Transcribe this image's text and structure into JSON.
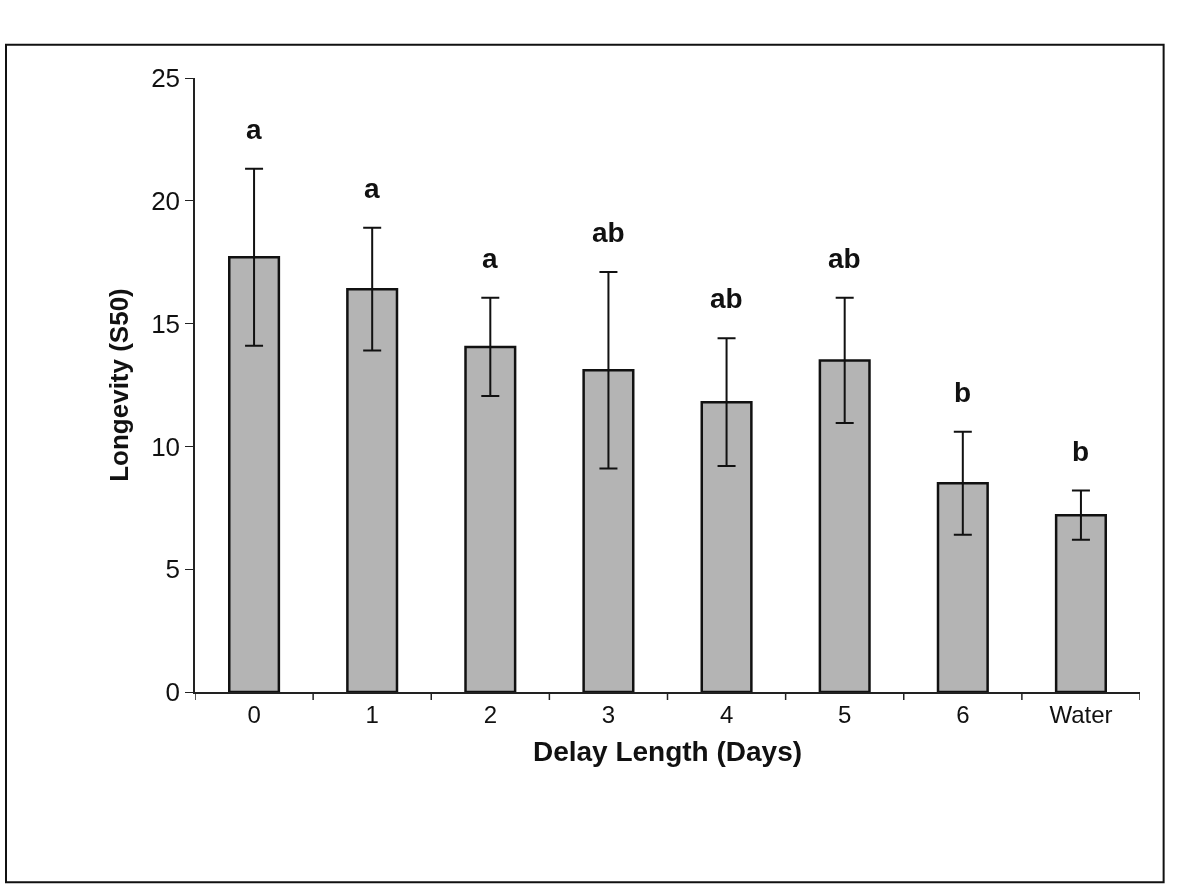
{
  "chart_data": {
    "type": "bar",
    "xlabel": "Delay Length (Days)",
    "ylabel": "Longevity (S50)",
    "categories": [
      "0",
      "1",
      "2",
      "3",
      "4",
      "5",
      "6",
      "Water"
    ],
    "values": [
      17.7,
      16.4,
      14.05,
      13.1,
      11.8,
      13.5,
      8.5,
      7.2
    ],
    "errors": [
      3.6,
      2.5,
      2.0,
      4.0,
      2.6,
      2.55,
      2.1,
      1.0
    ],
    "color": "#b4b4b4",
    "ylim": [
      0,
      25
    ],
    "yticks": [
      0,
      5,
      10,
      15,
      20,
      25
    ],
    "annotations": [
      "a",
      "a",
      "a",
      "ab",
      "ab",
      "ab",
      "b",
      "b"
    ]
  }
}
